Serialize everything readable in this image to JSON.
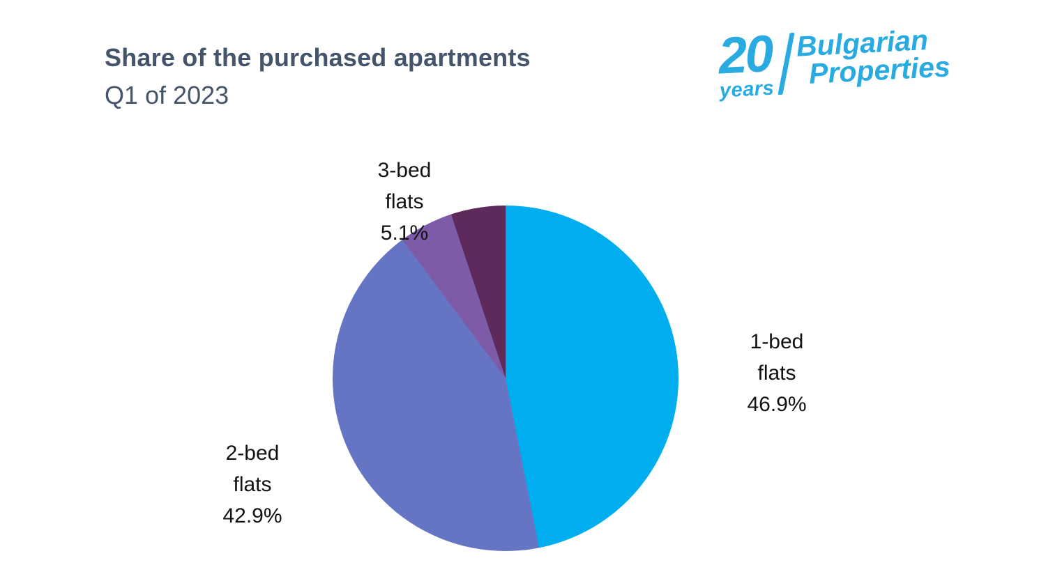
{
  "header": {
    "title": "Share of the purchased apartments",
    "subtitle": "Q1 of 2023"
  },
  "logo": {
    "number": "20",
    "years": "years",
    "brand_line1": "Bulgarian",
    "brand_line2": "Properties",
    "color": "#29ABE2"
  },
  "chart_data": {
    "type": "pie",
    "title": "Share of the purchased apartments",
    "subtitle": "Q1 of 2023",
    "legend": "none",
    "labels_position": "outside",
    "start_angle_deg": 0,
    "direction": "clockwise",
    "slices": [
      {
        "label": "1-bed flats",
        "value": 46.9,
        "percent_text": "46.9%",
        "color": "#00AEEF",
        "label_lines": [
          "1-bed",
          "flats",
          "46.9%"
        ]
      },
      {
        "label": "2-bed flats",
        "value": 42.9,
        "percent_text": "42.9%",
        "color": "#6674C4",
        "label_lines": [
          "2-bed",
          "flats",
          "42.9%"
        ]
      },
      {
        "label": "3-bed flats",
        "value": 5.1,
        "percent_text": "5.1%",
        "color": "#7D5BA6",
        "label_lines": [
          "3-bed",
          "flats",
          "5.1%"
        ]
      },
      {
        "label": "",
        "value": 5.1,
        "percent_text": "",
        "color": "#5E2A5B",
        "label_lines": []
      }
    ]
  }
}
